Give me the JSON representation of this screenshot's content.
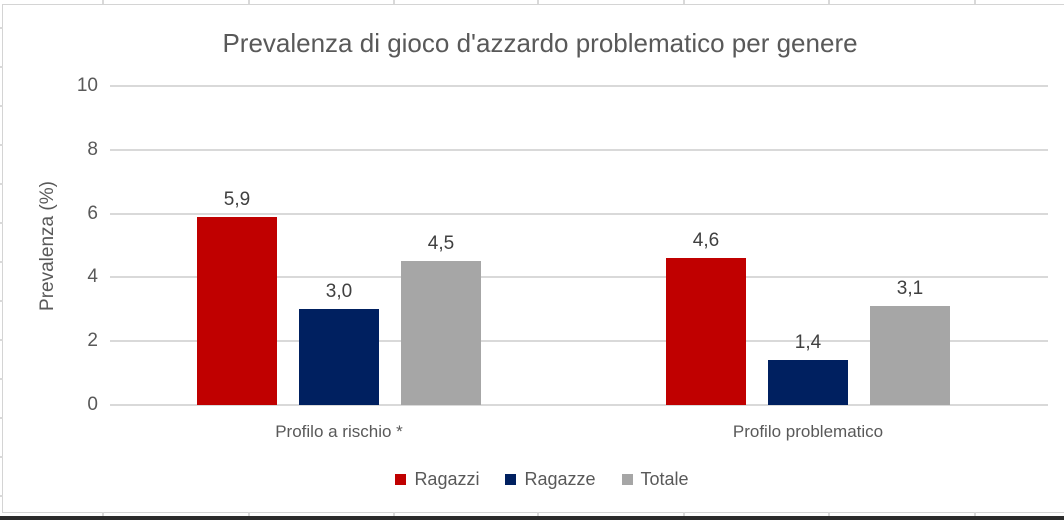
{
  "chart_data": {
    "type": "bar",
    "title": "Prevalenza di gioco d'azzardo problematico per genere",
    "xlabel": "",
    "ylabel": "Prevalenza (%)",
    "ylim": [
      0,
      10
    ],
    "yticks": [
      0,
      2,
      4,
      6,
      8,
      10
    ],
    "grid": "horizontal",
    "gridline_color": "#d9d9d9",
    "legend_position": "bottom",
    "decimal_separator": ",",
    "categories": [
      "Profilo a rischio *",
      "Profilo problematico"
    ],
    "series": [
      {
        "name": "Ragazzi",
        "color": "#c00000",
        "values": [
          5.9,
          4.6
        ],
        "labels": [
          "5,9",
          "4,6"
        ]
      },
      {
        "name": "Ragazze",
        "color": "#002060",
        "values": [
          3.0,
          1.4
        ],
        "labels": [
          "3,0",
          "1,4"
        ]
      },
      {
        "name": "Totale",
        "color": "#a6a6a6",
        "values": [
          4.5,
          3.1
        ],
        "labels": [
          "4,5",
          "3,1"
        ]
      }
    ],
    "text_color": "#595959",
    "value_label_color": "#404040"
  }
}
